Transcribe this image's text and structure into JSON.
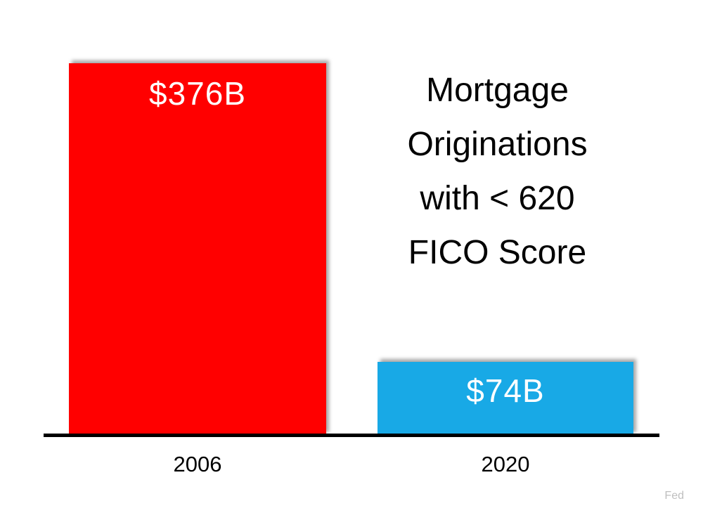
{
  "page": {
    "background_color": "#FFFFFF",
    "source_label": "Fed",
    "source_color": "#BFBFBF"
  },
  "title": {
    "full_text": "Mortgage Originations with < 620 FICO Score",
    "lines": [
      "Mortgage",
      "Originations",
      "with < 620",
      "FICO Score"
    ],
    "color": "#000000"
  },
  "chart_data": {
    "type": "bar",
    "title": "Mortgage Originations with < 620 FICO Score",
    "categories": [
      "2006",
      "2020"
    ],
    "values": [
      376,
      74
    ],
    "value_labels": [
      "$376B",
      "$74B"
    ],
    "bar_colors": [
      "#FF0000",
      "#18A9E6"
    ],
    "value_label_color": "#FFFFFF",
    "category_label_color": "#000000",
    "axis_line_color": "#000000",
    "ylim": [
      0,
      376
    ],
    "grid": false,
    "legend": false,
    "source": "Fed"
  }
}
